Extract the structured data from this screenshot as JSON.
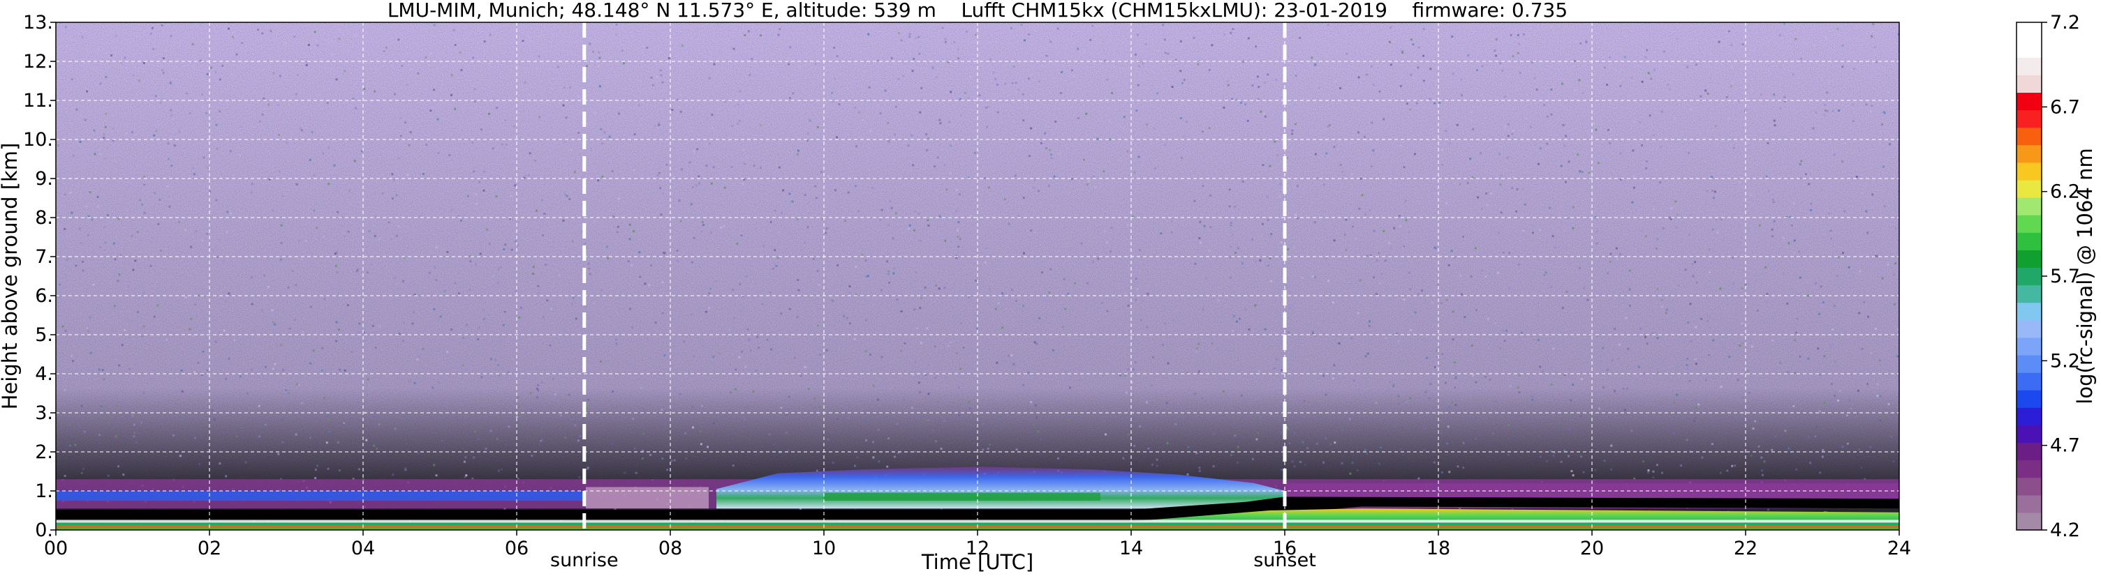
{
  "chart_data": {
    "type": "heatmap",
    "title": "LMU-MIM, Munich; 48.148° N 11.573° E, altitude: 539 m    Lufft CHM15kx (CHM15kxLMU): 23-01-2019    firmware: 0.735",
    "xlabel": "Time [UTC]",
    "ylabel": "Height above ground [km]",
    "xlim": [
      0,
      24
    ],
    "ylim": [
      0,
      13
    ],
    "x_ticks": [
      "00",
      "02",
      "04",
      "06",
      "08",
      "10",
      "12",
      "14",
      "16",
      "18",
      "20",
      "22",
      "24"
    ],
    "y_ticks": [
      "0.",
      "1.",
      "2.",
      "3.",
      "4.",
      "5.",
      "6.",
      "7.",
      "8.",
      "9.",
      "10.",
      "11.",
      "12.",
      "13."
    ],
    "grid": true,
    "markers": [
      {
        "label": "sunrise",
        "time": 6.88
      },
      {
        "label": "sunset",
        "time": 16.0
      }
    ],
    "colorbar": {
      "label": "log(rc-signal) @ 1064 nm",
      "range": [
        4.2,
        7.2
      ],
      "ticks": [
        "4.2",
        "4.7",
        "5.2",
        "5.7",
        "6.2",
        "6.7",
        "7.2"
      ],
      "colors": [
        "#a58aa8",
        "#9a6f9c",
        "#8c4f8c",
        "#7a2f85",
        "#6a1e86",
        "#4a12b4",
        "#2c1ed8",
        "#1c48f0",
        "#3c6cf4",
        "#5c8cf6",
        "#7ca4f8",
        "#98b8f8",
        "#80c8f0",
        "#44b8a0",
        "#20a868",
        "#10a030",
        "#30c040",
        "#60d850",
        "#a0e870",
        "#e8e840",
        "#f8c820",
        "#f89818",
        "#f86010",
        "#f82020",
        "#f00010",
        "#f0d8d8",
        "#f4ecec",
        "#ffffff",
        "#ffffff"
      ]
    },
    "layers": [
      {
        "name": "noise",
        "h_from": 0,
        "h_to": 13,
        "base": "#3a2a4a",
        "speckle": [
          "#6a5a9a",
          "#8a7ab8",
          "#9a8ac8",
          "#7a6aaa",
          "#c0b8d8",
          "#5a7ab0",
          "#6a8a6a"
        ]
      },
      {
        "name": "residual-layer",
        "h_from": 0.55,
        "h_to": 1.3,
        "color": "#8a3a98",
        "core": "#2a5cf0"
      },
      {
        "name": "boundary-layer-day",
        "t_from": 9.0,
        "t_to": 15.5,
        "h_top": 1.6,
        "colors": [
          "#4a8af0",
          "#7aa8f8",
          "#30b060",
          "#20a040"
        ]
      },
      {
        "name": "surface-black-band",
        "h_from": 0.25,
        "h_to": 0.5,
        "color": "#000000"
      },
      {
        "name": "surface-aerosol",
        "h_from": 0.0,
        "h_to": 0.3,
        "colors": [
          "#30c040",
          "#20a868",
          "#60d850",
          "#f8c820",
          "#f86010"
        ]
      }
    ]
  }
}
